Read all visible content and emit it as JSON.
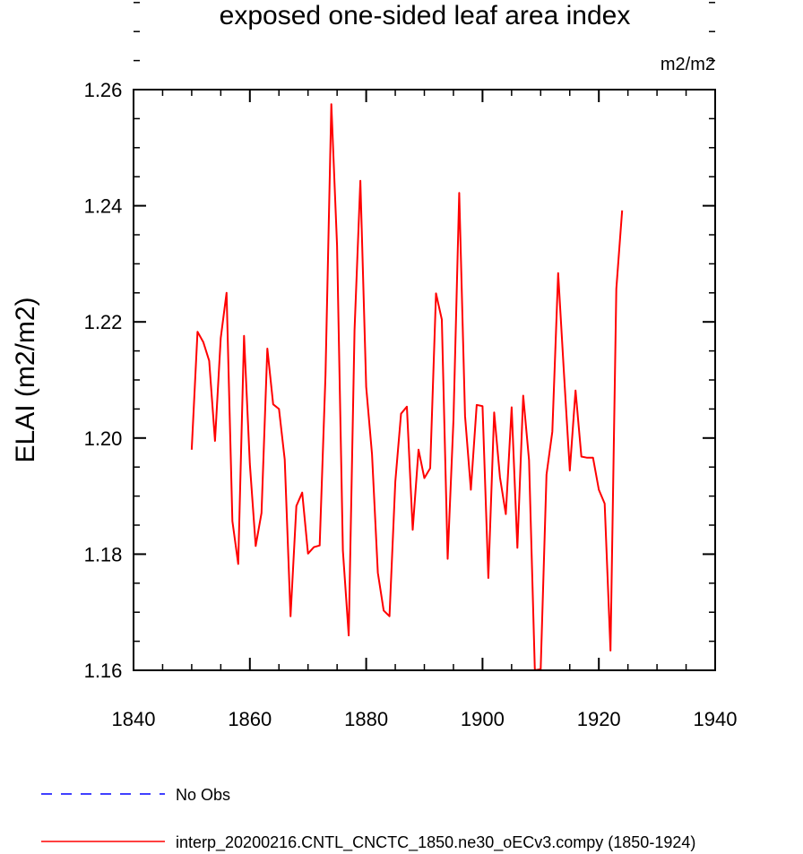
{
  "chart_data": {
    "type": "line",
    "title": "exposed one-sided leaf area index",
    "units": "m2/m2",
    "ylabel": "ELAI  (m2/m2)",
    "xlabel": "",
    "xlim": [
      1840,
      1940
    ],
    "ylim": [
      1.16,
      1.26
    ],
    "x_ticks": [
      "1840",
      "1860",
      "1880",
      "1900",
      "1920",
      "1940"
    ],
    "y_ticks": [
      "1.16",
      "1.18",
      "1.20",
      "1.22",
      "1.24",
      "1.26"
    ],
    "grid": false,
    "legend_placement": "bottom",
    "series": [
      {
        "name": "interp_20200216.CNTL_CNCTC_1850.ne30_oECv3.compy (1850-1924)",
        "color": "#ff0000",
        "style": "solid",
        "x": [
          1850,
          1851,
          1852,
          1853,
          1854,
          1855,
          1856,
          1857,
          1858,
          1859,
          1860,
          1861,
          1862,
          1863,
          1864,
          1865,
          1866,
          1867,
          1868,
          1869,
          1870,
          1871,
          1872,
          1873,
          1874,
          1875,
          1876,
          1877,
          1878,
          1879,
          1880,
          1881,
          1882,
          1883,
          1884,
          1885,
          1886,
          1887,
          1888,
          1889,
          1890,
          1891,
          1892,
          1893,
          1894,
          1895,
          1896,
          1897,
          1898,
          1899,
          1900,
          1901,
          1902,
          1903,
          1904,
          1905,
          1906,
          1907,
          1908,
          1909,
          1910,
          1911,
          1912,
          1913,
          1914,
          1915,
          1916,
          1917,
          1918,
          1919,
          1920,
          1921,
          1922,
          1923,
          1924
        ],
        "values": [
          1.198,
          1.2183,
          1.2165,
          1.2133,
          1.1995,
          1.2172,
          1.225,
          1.1857,
          1.1783,
          1.2176,
          1.1955,
          1.1814,
          1.1871,
          1.2154,
          1.2058,
          1.205,
          1.1963,
          1.1693,
          1.1883,
          1.1906,
          1.1801,
          1.1812,
          1.1815,
          1.2109,
          1.2575,
          1.2331,
          1.1806,
          1.166,
          1.2186,
          1.2443,
          1.2088,
          1.1972,
          1.1768,
          1.1703,
          1.1693,
          1.1925,
          1.2042,
          1.2054,
          1.1842,
          1.198,
          1.1931,
          1.1948,
          1.2249,
          1.2204,
          1.1792,
          1.2032,
          1.2422,
          1.2038,
          1.1911,
          1.2057,
          1.2055,
          1.1759,
          1.2044,
          1.1932,
          1.1869,
          1.2053,
          1.1811,
          1.2073,
          1.1962,
          1.16,
          1.1602,
          1.1937,
          1.2011,
          1.2284,
          1.2111,
          1.1944,
          1.2082,
          1.1968,
          1.1966,
          1.1966,
          1.1911,
          1.1887,
          1.1634,
          1.2257,
          1.2392
        ]
      },
      {
        "name": "No Obs",
        "color": "#0000ff",
        "style": "dashed",
        "x": [],
        "values": []
      }
    ]
  }
}
